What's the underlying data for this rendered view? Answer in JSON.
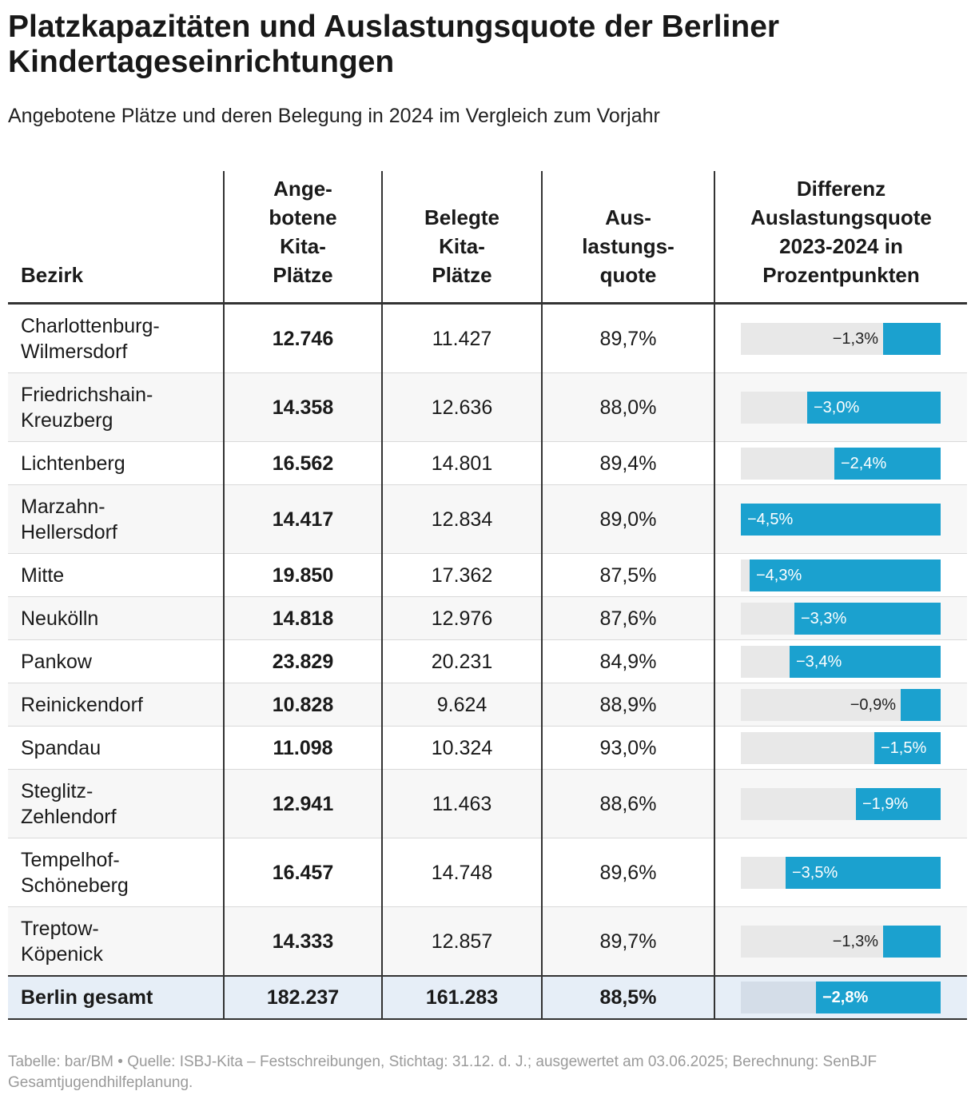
{
  "title": "Platzkapazitäten und Auslastungsquote der Berliner Kindertageseinrichtungen",
  "subtitle": "Angebotene Plätze und deren Belegung in 2024 im Vergleich zum Vorjahr",
  "footer": "Tabelle: bar/BM • Quelle: ISBJ-Kita – Festschreibungen, Stichtag: 31.12. d. J.; ausgewertet am 03.06.2025; Berechnung: SenBJF Gesamtjugendhilfeplanung.",
  "chart_data": {
    "type": "table",
    "headers": {
      "bezirk": "Bezirk",
      "angebotene": "Ange-\nbotene\nKita-\nPlätze",
      "belegte": "Belegte\nKita-\nPlätze",
      "quote": "Aus-\nlastungs-\nquote",
      "differenz": "Differenz\nAuslastungsquote\n2023-2024 in\nProzentpunkten"
    },
    "diff_range": [
      -4.5,
      0
    ],
    "colors": {
      "bar": "#1ba1cf",
      "track": "#e8e8e8",
      "total_row": "#e6eef7"
    },
    "rows": [
      {
        "bezirk": "Charlottenburg-\nWilmersdorf",
        "angebotene": "12.746",
        "belegte": "11.427",
        "quote": "89,7%",
        "diff": -1.3,
        "diff_label": "−1,3%"
      },
      {
        "bezirk": "Friedrichshain-\nKreuzberg",
        "angebotene": "14.358",
        "belegte": "12.636",
        "quote": "88,0%",
        "diff": -3.0,
        "diff_label": "−3,0%"
      },
      {
        "bezirk": "Lichtenberg",
        "angebotene": "16.562",
        "belegte": "14.801",
        "quote": "89,4%",
        "diff": -2.4,
        "diff_label": "−2,4%"
      },
      {
        "bezirk": "Marzahn-\nHellersdorf",
        "angebotene": "14.417",
        "belegte": "12.834",
        "quote": "89,0%",
        "diff": -4.5,
        "diff_label": "−4,5%"
      },
      {
        "bezirk": "Mitte",
        "angebotene": "19.850",
        "belegte": "17.362",
        "quote": "87,5%",
        "diff": -4.3,
        "diff_label": "−4,3%"
      },
      {
        "bezirk": "Neukölln",
        "angebotene": "14.818",
        "belegte": "12.976",
        "quote": "87,6%",
        "diff": -3.3,
        "diff_label": "−3,3%"
      },
      {
        "bezirk": "Pankow",
        "angebotene": "23.829",
        "belegte": "20.231",
        "quote": "84,9%",
        "diff": -3.4,
        "diff_label": "−3,4%"
      },
      {
        "bezirk": "Reinickendorf",
        "angebotene": "10.828",
        "belegte": "9.624",
        "quote": "88,9%",
        "diff": -0.9,
        "diff_label": "−0,9%"
      },
      {
        "bezirk": "Spandau",
        "angebotene": "11.098",
        "belegte": "10.324",
        "quote": "93,0%",
        "diff": -1.5,
        "diff_label": "−1,5%"
      },
      {
        "bezirk": "Steglitz-\nZehlendorf",
        "angebotene": "12.941",
        "belegte": "11.463",
        "quote": "88,6%",
        "diff": -1.9,
        "diff_label": "−1,9%"
      },
      {
        "bezirk": "Tempelhof-\nSchöneberg",
        "angebotene": "16.457",
        "belegte": "14.748",
        "quote": "89,6%",
        "diff": -3.5,
        "diff_label": "−3,5%"
      },
      {
        "bezirk": "Treptow-\nKöpenick",
        "angebotene": "14.333",
        "belegte": "12.857",
        "quote": "89,7%",
        "diff": -1.3,
        "diff_label": "−1,3%"
      }
    ],
    "total": {
      "bezirk": "Berlin gesamt",
      "angebotene": "182.237",
      "belegte": "161.283",
      "quote": "88,5%",
      "diff": -2.8,
      "diff_label": "−2,8%"
    }
  }
}
